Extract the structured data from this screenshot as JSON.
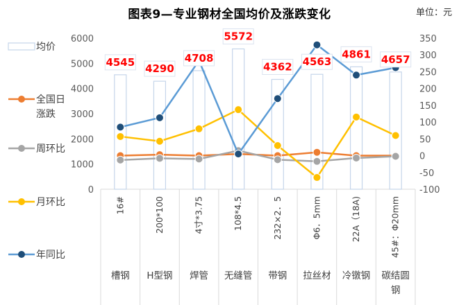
{
  "header": {
    "title": "图表9—专业钢材全国均价及涨跌变化",
    "unit": "单位：元"
  },
  "colors": {
    "bar_fill": "#ffffff",
    "bar_stroke": "#c5d5ea",
    "daily": "#ed7d31",
    "weekly": "#a5a5a5",
    "monthly": "#ffc000",
    "yearly": "#5b9bd5",
    "yearly_marker": "#1f4e79",
    "label_text": "#ff0000"
  },
  "chart_data": {
    "type": "bar",
    "title": "图表9—专业钢材全国均价及涨跌变化",
    "categories": [
      {
        "spec": "16#",
        "name": "槽钢"
      },
      {
        "spec": "200*100",
        "name": "H型钢"
      },
      {
        "spec": "4寸*3.75",
        "name": "焊管"
      },
      {
        "spec": "108*4.5",
        "name": "无缝管"
      },
      {
        "spec": "232×2．5",
        "name": "带钢"
      },
      {
        "spec": "Φ6．5mm",
        "name": "拉丝材"
      },
      {
        "spec": "22A（18A)",
        "name": "冷镦钢"
      },
      {
        "spec": "45#：Φ20mm",
        "name": "碳结圆钢"
      }
    ],
    "left_axis": {
      "ylim": [
        0,
        6000
      ],
      "ticks": [
        0,
        1000,
        2000,
        3000,
        4000,
        5000,
        6000
      ]
    },
    "right_axis": {
      "ylim": [
        -100,
        350
      ],
      "ticks": [
        -100,
        -50,
        0,
        50,
        100,
        150,
        200,
        250,
        300,
        350
      ]
    },
    "series": [
      {
        "name": "均价",
        "type": "bar",
        "axis": "left",
        "values": [
          4545,
          4290,
          4708,
          5572,
          4362,
          4563,
          4861,
          4657
        ]
      },
      {
        "name": "全国日涨跌",
        "type": "line",
        "axis": "right",
        "values": [
          0,
          3,
          0,
          5,
          0,
          10,
          0,
          0
        ]
      },
      {
        "name": "周环比",
        "type": "line",
        "axis": "right",
        "values": [
          -13,
          -8,
          -10,
          15,
          -12,
          -17,
          -7,
          -2
        ]
      },
      {
        "name": "月环比",
        "type": "line",
        "axis": "right",
        "values": [
          57,
          43,
          80,
          137,
          30,
          -65,
          115,
          60
        ]
      },
      {
        "name": "年同比",
        "type": "line",
        "axis": "right",
        "values": [
          85,
          113,
          283,
          5,
          170,
          330,
          240,
          262
        ]
      }
    ],
    "legend_position": "left"
  }
}
